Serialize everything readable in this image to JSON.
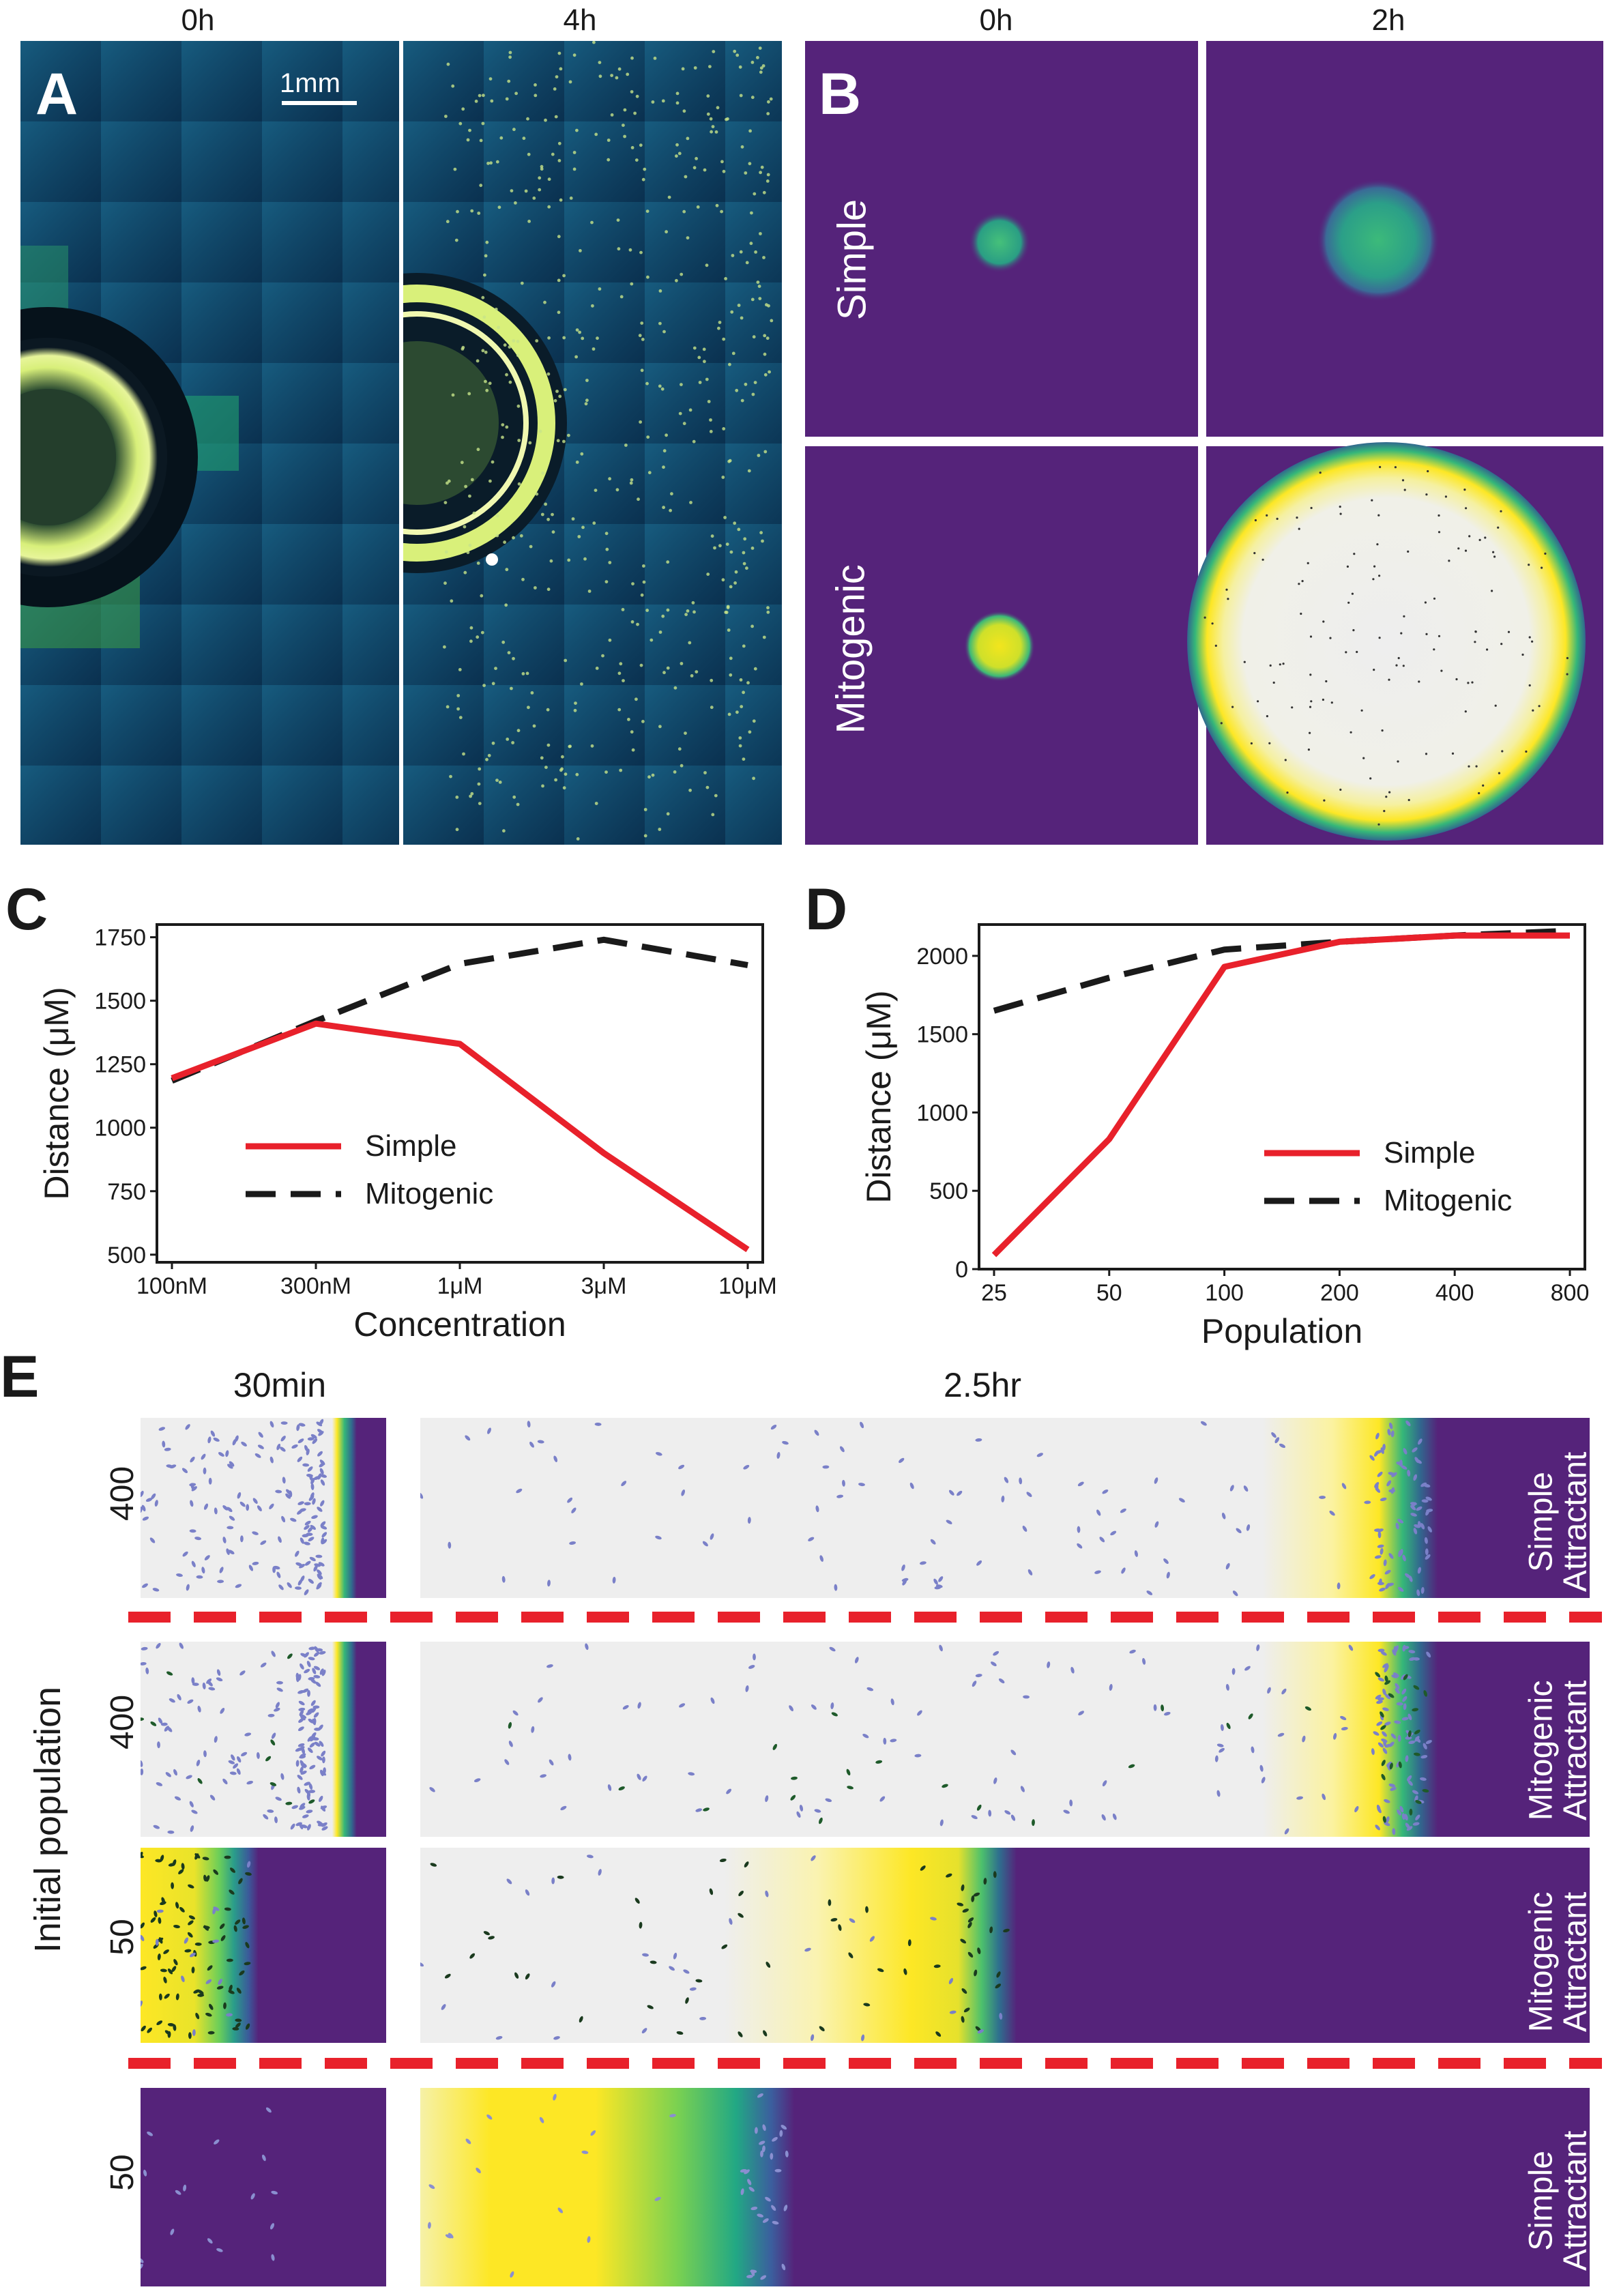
{
  "panelA": {
    "label": "A",
    "time_left": "0h",
    "time_right": "4h",
    "scalebar": "1mm"
  },
  "panelB": {
    "label": "B",
    "time_left": "0h",
    "time_right": "2h",
    "row_top": "Simple",
    "row_bottom": "Mitogenic"
  },
  "panelC": {
    "label": "C"
  },
  "panelD": {
    "label": "D"
  },
  "panelE": {
    "label": "E",
    "time_left": "30min",
    "time_right": "2.5hr",
    "axis_label": "Initial population",
    "rows": [
      {
        "population": "400",
        "attractant_1": "Simple",
        "attractant_2": "Attractant"
      },
      {
        "population": "400",
        "attractant_1": "Mitogenic",
        "attractant_2": "Attractant"
      },
      {
        "population": "50",
        "attractant_1": "Mitogenic",
        "attractant_2": "Attractant"
      },
      {
        "population": "50",
        "attractant_1": "Simple",
        "attractant_2": "Attractant"
      }
    ]
  },
  "colors": {
    "simple_line": "#e8212b",
    "mitogenic_line": "#1a1a1a",
    "viridis_purple": "#55237a",
    "separator": "#e8212b"
  },
  "chart_data": [
    {
      "type": "line",
      "panel": "C",
      "title": "",
      "xlabel": "Concentration",
      "ylabel": "Distance (μM)",
      "categories": [
        "100nM",
        "300nM",
        "1μM",
        "3μM",
        "10μM"
      ],
      "ylim": [
        470,
        1800
      ],
      "yticks": [
        500,
        750,
        1000,
        1250,
        1500,
        1750
      ],
      "legend_position": "lower-left",
      "series": [
        {
          "name": "Simple",
          "style": "solid",
          "values": [
            1195,
            1410,
            1330,
            900,
            520
          ]
        },
        {
          "name": "Mitogenic",
          "style": "dashed",
          "values": [
            1185,
            1420,
            1645,
            1740,
            1640
          ]
        }
      ]
    },
    {
      "type": "line",
      "panel": "D",
      "title": "",
      "xlabel": "Population",
      "ylabel": "Distance (μM)",
      "categories": [
        "25",
        "50",
        "100",
        "200",
        "400",
        "800"
      ],
      "ylim": [
        0,
        2200
      ],
      "yticks": [
        0,
        500,
        1000,
        1500,
        2000
      ],
      "legend_position": "lower-right",
      "series": [
        {
          "name": "Simple",
          "style": "solid",
          "values": [
            90,
            830,
            1930,
            2090,
            2130,
            2130
          ]
        },
        {
          "name": "Mitogenic",
          "style": "dashed",
          "values": [
            1650,
            1860,
            2040,
            2090,
            2130,
            2160
          ]
        }
      ]
    }
  ]
}
